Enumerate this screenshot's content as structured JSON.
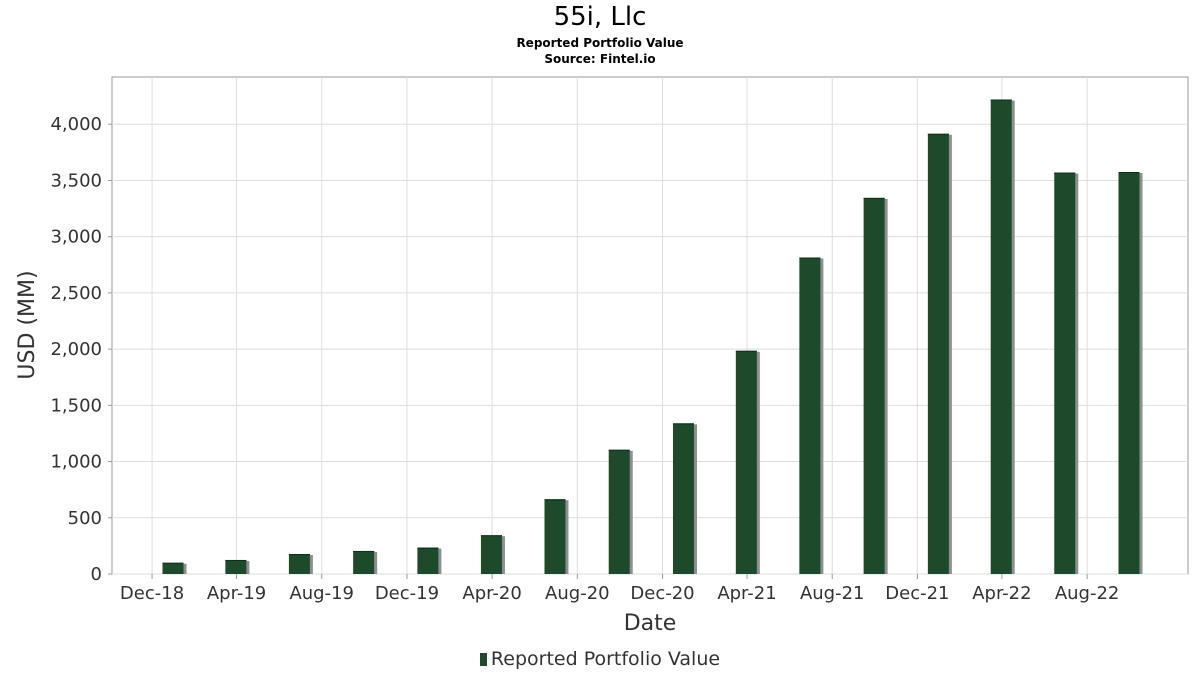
{
  "chart_data": {
    "type": "bar",
    "title": "55i, Llc",
    "subtitle": "Reported Portfolio Value",
    "source": "Source: Fintel.io",
    "xlabel": "Date",
    "ylabel": "USD (MM)",
    "x_tick_labels": [
      "Dec-18",
      "Apr-19",
      "Aug-19",
      "Dec-19",
      "Apr-20",
      "Aug-20",
      "Dec-20",
      "Apr-21",
      "Aug-21",
      "Dec-21",
      "Apr-22",
      "Aug-22"
    ],
    "y_tick_labels": [
      "0",
      "500",
      "1,000",
      "1,500",
      "2,000",
      "2,500",
      "3,000",
      "3,500",
      "4,000"
    ],
    "ylim": [
      0,
      4420
    ],
    "grid": true,
    "legend_position": "bottom",
    "series": [
      {
        "name": "Reported Portfolio Value",
        "color": "#1e4a2b",
        "x": [
          "2018-12-31",
          "2019-03-31",
          "2019-06-30",
          "2019-09-30",
          "2019-12-31",
          "2020-03-31",
          "2020-06-30",
          "2020-09-30",
          "2020-12-31",
          "2021-03-31",
          "2021-06-30",
          "2021-09-30",
          "2021-12-31",
          "2022-03-31",
          "2022-06-30",
          "2022-09-30"
        ],
        "values": [
          100,
          125,
          178,
          205,
          235,
          345,
          665,
          1105,
          1340,
          1985,
          2815,
          3345,
          3915,
          4220,
          3570,
          3575
        ]
      }
    ]
  }
}
